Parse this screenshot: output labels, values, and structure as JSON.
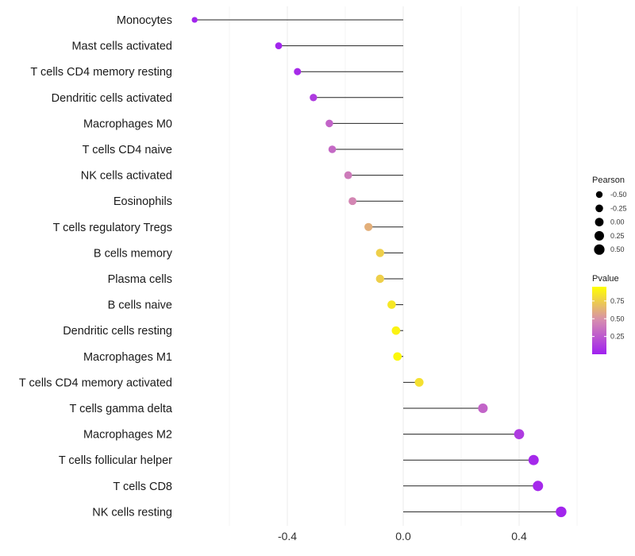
{
  "chart_data": {
    "type": "lollipop",
    "title": "",
    "xlabel": "",
    "ylabel": "",
    "xlim": [
      -0.72,
      0.6
    ],
    "x_ticks": [
      -0.4,
      0.0,
      0.4
    ],
    "x_tick_labels": [
      "-0.4",
      "0.0",
      "0.4"
    ],
    "grid": true,
    "categories": [
      "Monocytes",
      "Mast cells activated",
      "T cells CD4 memory resting",
      "Dendritic cells activated",
      "Macrophages M0",
      "T cells CD4 naive",
      "NK cells activated",
      "Eosinophils",
      "T cells regulatory  Tregs ",
      "B cells memory",
      "Plasma cells",
      "B cells naive",
      "Dendritic cells resting",
      "Macrophages M1",
      "T cells CD4 memory activated",
      "T cells gamma delta",
      "Macrophages M2",
      "T cells follicular helper",
      "T cells CD8",
      "NK cells resting"
    ],
    "pearson": [
      -0.72,
      -0.43,
      -0.365,
      -0.31,
      -0.255,
      -0.245,
      -0.19,
      -0.175,
      -0.12,
      -0.08,
      -0.08,
      -0.04,
      -0.025,
      -0.02,
      0.055,
      0.275,
      0.4,
      0.45,
      0.465,
      0.545
    ],
    "pvalue": [
      0.02,
      0.02,
      0.05,
      0.12,
      0.3,
      0.32,
      0.4,
      0.45,
      0.62,
      0.75,
      0.75,
      0.85,
      0.9,
      0.92,
      0.82,
      0.3,
      0.12,
      0.04,
      0.04,
      0.02
    ],
    "legend_size": {
      "title": "Pearson",
      "values": [
        -0.5,
        -0.25,
        0.0,
        0.25,
        0.5
      ],
      "labels": [
        "-0.50",
        "-0.25",
        "0.00",
        "0.25",
        "0.50"
      ]
    },
    "legend_color": {
      "title": "Pvalue",
      "ticks": [
        0.25,
        0.5,
        0.75
      ],
      "labels": [
        "0.25",
        "0.50",
        "0.75"
      ],
      "low_color": "#a020f0",
      "mid_color": "#d68cb0",
      "high_color": "#ffff00",
      "range": [
        0.0,
        0.95
      ]
    }
  }
}
